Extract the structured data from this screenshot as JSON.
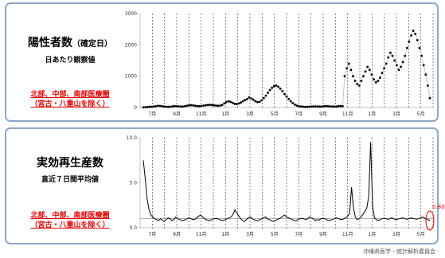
{
  "top": {
    "title": "陽性者数",
    "title_paren": "（確定日）",
    "subtitle": "日あたり観察値",
    "note_line1": "北部、中部、南部医療圏",
    "note_line2": "（宮古・八重山を除く）"
  },
  "bottom": {
    "title": "実効再生産数",
    "subtitle": "直近７日間平均値",
    "note_line1": "北部、中部、南部医療圏",
    "note_line2": "（宮古・八重山を除く）",
    "last_value": "0.80"
  },
  "credit": "沖縄県医学・統計解析委員会",
  "colors": {
    "border": "#8fa8c8",
    "note": "#e00000",
    "line": "#000000"
  },
  "chart_data": [
    {
      "type": "scatter",
      "title": "",
      "xlabel": "",
      "ylabel": "",
      "ylim": [
        0,
        3000
      ],
      "yticks": [
        "0",
        "1000",
        "2000",
        "3000"
      ],
      "x_tick_labels": [
        "7月",
        "9月",
        "11月",
        "1月",
        "3月",
        "5月",
        "7月",
        "9月",
        "11月",
        "1月",
        "3月",
        "5月"
      ],
      "grid": "vertical dashed lines",
      "series": [
        {
          "values": [
            5,
            10,
            15,
            20,
            25,
            30,
            40,
            55,
            50,
            40,
            30,
            25,
            20,
            25,
            35,
            45,
            40,
            35,
            30,
            30,
            40,
            55,
            70,
            75,
            65,
            55,
            45,
            40,
            50,
            60,
            70,
            80,
            85,
            80,
            70,
            60,
            55,
            60,
            80,
            130,
            170,
            200,
            180,
            150,
            120,
            110,
            130,
            160,
            200,
            240,
            270,
            320,
            290,
            250,
            200,
            170,
            180,
            230,
            300,
            380,
            470,
            560,
            630,
            680,
            700,
            660,
            600,
            520,
            430,
            350,
            270,
            200,
            140,
            90,
            60,
            40,
            30,
            25,
            20,
            20,
            25,
            30,
            35,
            35,
            30,
            30,
            30,
            40,
            45,
            40,
            35,
            30,
            30,
            30,
            40,
            45,
            40,
            1000,
            1250,
            1400,
            1200,
            1000,
            850,
            750,
            700,
            850,
            1000,
            1150,
            1300,
            1200,
            1050,
            900,
            800,
            850,
            950,
            1100,
            1250,
            1400,
            1600,
            1750,
            1650,
            1500,
            1350,
            1200,
            1300,
            1450,
            1650,
            1900,
            2100,
            2300,
            2450,
            2350,
            2150,
            1900,
            1650,
            1350,
            1050,
            700,
            300
          ]
        }
      ]
    },
    {
      "type": "line",
      "title": "",
      "xlabel": "",
      "ylabel": "",
      "ylim": [
        0,
        10
      ],
      "yticks": [
        "0.0",
        "5.0",
        "10.0"
      ],
      "x_tick_labels": [
        "7月",
        "9月",
        "11月",
        "1月",
        "3月",
        "5月",
        "7月",
        "9月",
        "11月",
        "1月",
        "3月",
        "5月"
      ],
      "reference_line": 1.0,
      "last_value": 0.8,
      "grid": "vertical dashed lines",
      "series": [
        {
          "values": [
            7.5,
            5.5,
            3.2,
            2.0,
            1.4,
            1.2,
            1.0,
            0.9,
            0.8,
            1.0,
            0.85,
            0.7,
            0.9,
            1.1,
            1.0,
            0.8,
            0.9,
            1.2,
            1.0,
            0.9,
            0.85,
            0.8,
            0.9,
            1.0,
            1.1,
            1.0,
            0.9,
            0.95,
            1.1,
            1.3,
            1.4,
            1.2,
            1.0,
            0.9,
            0.8,
            0.85,
            0.9,
            1.0,
            1.05,
            1.0,
            0.9,
            0.8,
            0.85,
            0.9,
            1.0,
            1.1,
            1.2,
            1.5,
            2.0,
            1.6,
            1.3,
            1.0,
            0.8,
            0.7,
            0.9,
            1.1,
            1.2,
            1.0,
            0.9,
            0.8,
            0.8,
            0.9,
            1.0,
            1.1,
            1.2,
            1.0,
            0.9,
            0.8,
            0.7,
            0.8,
            0.9,
            1.0,
            1.1,
            1.3,
            1.4,
            1.2,
            1.1,
            1.0,
            0.9,
            0.8,
            0.8,
            0.9,
            1.0,
            1.05,
            1.0,
            0.9,
            1.0,
            1.2,
            1.1,
            1.0,
            0.8,
            0.9,
            0.85,
            1.0,
            1.05,
            1.0,
            0.9,
            0.8,
            0.85,
            0.9,
            1.0,
            1.1,
            1.0,
            0.95,
            0.9,
            1.0,
            1.1,
            1.3,
            1.6,
            4.5,
            2.2,
            1.2,
            0.9,
            1.0,
            1.2,
            1.5,
            1.8,
            2.2,
            3.5,
            9.5,
            2.5,
            1.1,
            0.9,
            0.8,
            0.9,
            1.0,
            1.05,
            1.0,
            0.95,
            1.0,
            1.1,
            1.0,
            0.9,
            0.95,
            1.0,
            1.05,
            1.1,
            1.0,
            0.95,
            1.0,
            1.1,
            1.05,
            1.0,
            0.95,
            1.0,
            1.1,
            1.2,
            1.1,
            1.0,
            0.9,
            0.8
          ]
        }
      ]
    }
  ]
}
